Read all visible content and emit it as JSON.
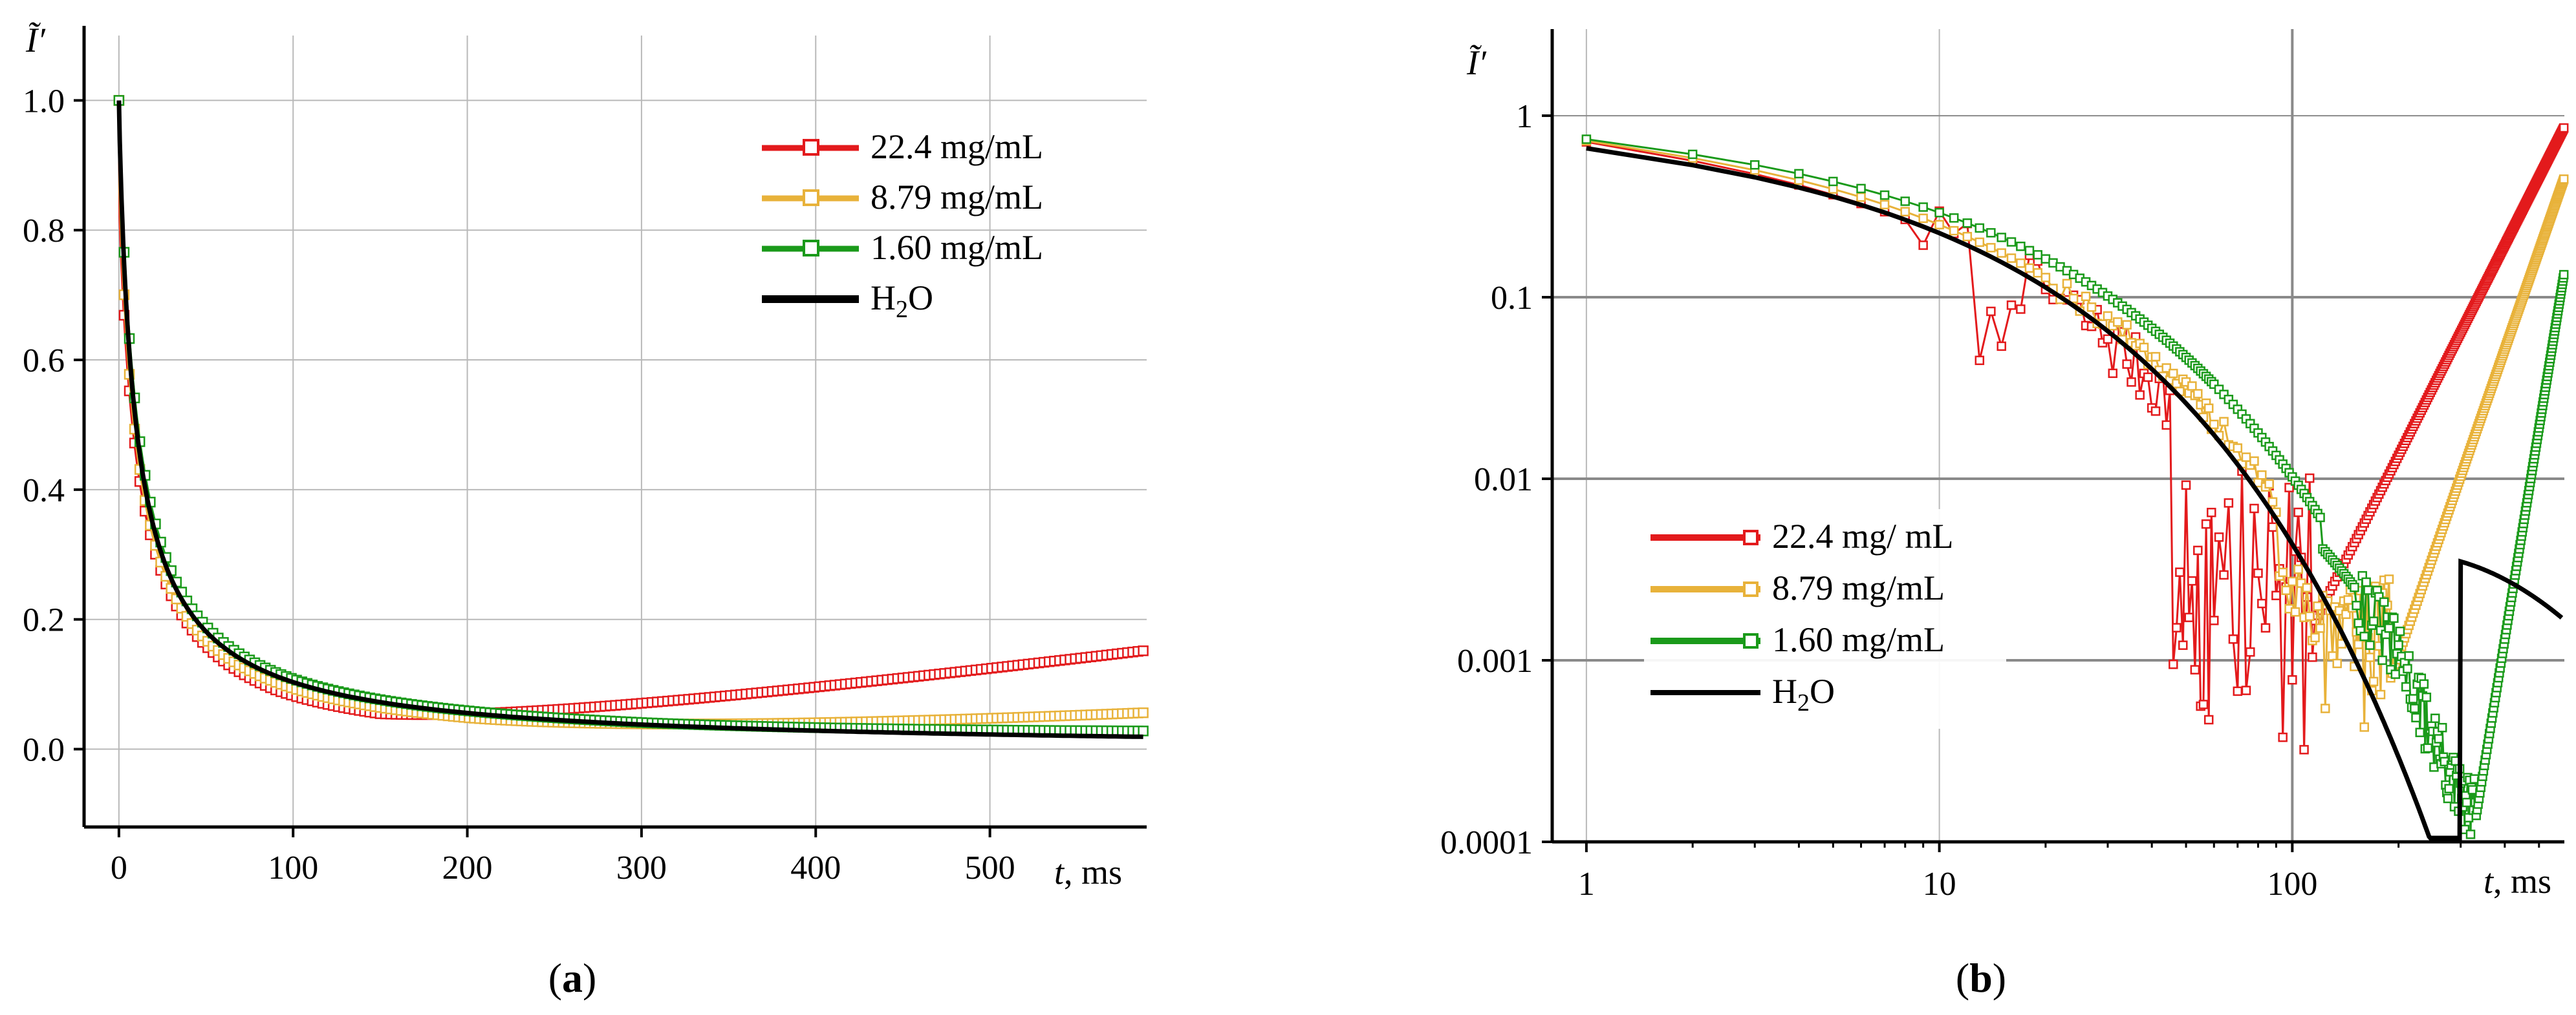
{
  "colors": {
    "red": "#e31a1c",
    "orange": "#e8b23a",
    "green": "#1a9a1a",
    "black": "#000000",
    "grid": "#b9b9b9",
    "grid_strong": "#8a8a8a"
  },
  "chart_data": [
    {
      "id": "a",
      "type": "line",
      "panel_label": "a",
      "ylabel": "Ĩ′",
      "xlabel_var": "t",
      "xlabel_unit": ", ms",
      "xlim": [
        -20,
        590
      ],
      "ylim": [
        -0.12,
        1.1
      ],
      "x_ticks": [
        0,
        100,
        200,
        300,
        400,
        500
      ],
      "x_tick_labels": [
        "0",
        "100",
        "200",
        "300",
        "400",
        "500"
      ],
      "y_ticks": [
        0.0,
        0.2,
        0.4,
        0.6,
        0.8,
        1.0
      ],
      "y_tick_labels": [
        "0.0",
        "0.2",
        "0.4",
        "0.6",
        "0.8",
        "1.0"
      ],
      "legend": {
        "position": "top-right",
        "entries": [
          {
            "label": "22.4 mg/mL",
            "color": "#e31a1c",
            "marker": "square"
          },
          {
            "label": "8.79 mg/mL",
            "color": "#e8b23a",
            "marker": "square"
          },
          {
            "label": "1.60 mg/mL",
            "color": "#1a9a1a",
            "marker": "square"
          },
          {
            "label": "H",
            "sub": "2",
            "suffix": "O",
            "color": "#000000",
            "marker": "none"
          }
        ]
      },
      "series": [
        {
          "name": "22.4 mg/mL",
          "color": "#e31a1c",
          "model": "a_red"
        },
        {
          "name": "8.79 mg/mL",
          "color": "#e8b23a",
          "model": "a_orange"
        },
        {
          "name": "1.60 mg/mL",
          "color": "#1a9a1a",
          "model": "a_green"
        },
        {
          "name": "H2O",
          "color": "#000000",
          "model": "a_water"
        }
      ]
    },
    {
      "id": "b",
      "type": "line",
      "scale": "log-log",
      "panel_label": "b",
      "ylabel": "Ĩ′",
      "xlabel_var": "t",
      "xlabel_unit": ", ms",
      "xlim": [
        0.8,
        590
      ],
      "ylim": [
        0.0001,
        3
      ],
      "x_ticks": [
        1,
        10,
        100
      ],
      "x_tick_labels": [
        "1",
        "10",
        "100"
      ],
      "y_ticks": [
        0.0001,
        0.001,
        0.01,
        0.1,
        1
      ],
      "y_tick_labels": [
        "0.0001",
        "0.001",
        "0.01",
        "0.1",
        "1"
      ],
      "legend": {
        "position": "bottom-left",
        "entries": [
          {
            "label": "22.4 mg/ mL",
            "color": "#e31a1c",
            "marker": "square"
          },
          {
            "label": "8.79 mg/mL",
            "color": "#e8b23a",
            "marker": "square"
          },
          {
            "label": "1.60 mg/mL",
            "color": "#1a9a1a",
            "marker": "square"
          },
          {
            "label": "H",
            "sub": "2",
            "suffix": "O",
            "color": "#000000",
            "marker": "none"
          }
        ]
      },
      "series": [
        {
          "name": "22.4 mg/mL",
          "color": "#e31a1c",
          "model": "b_red"
        },
        {
          "name": "8.79 mg/mL",
          "color": "#e8b23a",
          "model": "b_orange"
        },
        {
          "name": "1.60 mg/mL",
          "color": "#1a9a1a",
          "model": "b_green"
        },
        {
          "name": "H2O",
          "color": "#000000",
          "model": "b_water"
        }
      ]
    }
  ]
}
